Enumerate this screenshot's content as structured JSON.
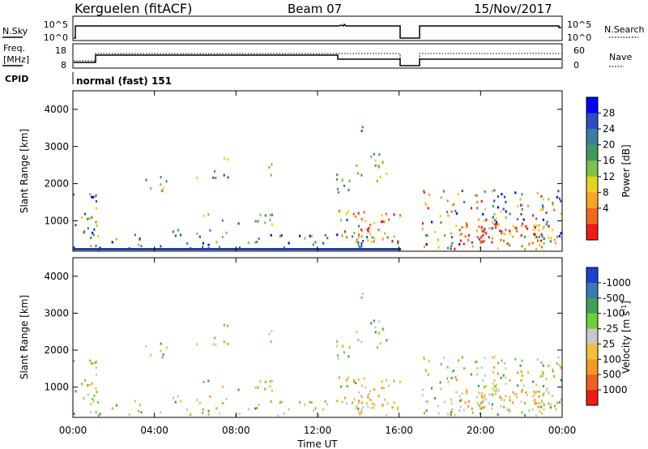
{
  "header": {
    "title": "Kerguelen (fitACF)",
    "beam": "Beam 07",
    "date": "15/Nov/2017"
  },
  "status_panels": {
    "nsky_label": "N.Sky",
    "nsky_ticks": [
      "10^5",
      "10^0"
    ],
    "nsearch_label": "N.Search",
    "nsearch_ticks": [
      "10^5",
      "10^0"
    ],
    "freq_label": "Freq.",
    "freq_unit": "[MHz]",
    "freq_ticks": [
      "18",
      "8"
    ],
    "nave_label": "Nave",
    "nave_ticks": [
      "60",
      "0"
    ],
    "cpid_label": "CPID",
    "cpid_value": "normal (fast) 151"
  },
  "chart_data": [
    {
      "type": "heatmap",
      "name": "power-panel",
      "ylabel": "Slant Range [km]",
      "ylim": [
        180,
        4500
      ],
      "yticks": [
        "1000",
        "2000",
        "3000",
        "4000"
      ],
      "xlim": [
        0,
        24
      ],
      "colorbar_label": "Power [dB]",
      "colorbar_ticks": [
        "4",
        "8",
        "12",
        "16",
        "20",
        "24",
        "28"
      ],
      "colorbar_colors": [
        "#0000ff",
        "#2b4fbf",
        "#3a7fa0",
        "#3f9a5e",
        "#7ec24a",
        "#e8d21c",
        "#f5a623",
        "#f26b1d",
        "#ee1c16"
      ],
      "data_gap_utc": [
        16.1,
        17.1
      ]
    },
    {
      "type": "heatmap",
      "name": "velocity-panel",
      "ylabel": "Slant Range [km]",
      "ylim": [
        180,
        4500
      ],
      "yticks": [
        "1000",
        "2000",
        "3000",
        "4000"
      ],
      "xlim": [
        0,
        24
      ],
      "xticks": [
        "00:00",
        "04:00",
        "08:00",
        "12:00",
        "16:00",
        "20:00",
        "00:00"
      ],
      "xlabel": "Time UT",
      "colorbar_label": "Velocity [m s",
      "colorbar_unit_sup": "-1",
      "colorbar_unit_close": "]",
      "colorbar_ticks": [
        "1000",
        "500",
        "100",
        "25",
        "-25",
        "-100",
        "-500",
        "-1000"
      ],
      "colorbar_colors": [
        "#1f3fd0",
        "#3a78b8",
        "#3fa05a",
        "#6fcf3a",
        "#c8c8c8",
        "#f0c040",
        "#f59a20",
        "#f06020",
        "#ee1c16"
      ],
      "data_gap_utc": [
        16.1,
        17.1
      ]
    }
  ]
}
